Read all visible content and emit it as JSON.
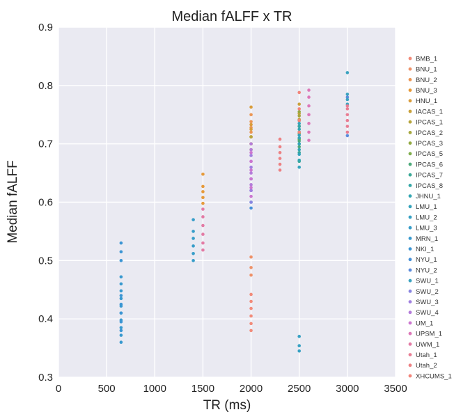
{
  "chart_data": {
    "type": "scatter",
    "title": "Median fALFF x TR",
    "xlabel": "TR (ms)",
    "ylabel": "Median fALFF",
    "xlim": [
      0,
      3500
    ],
    "ylim": [
      0.3,
      0.9
    ],
    "xticks": [
      0,
      500,
      1000,
      1500,
      2000,
      2500,
      3000,
      3500
    ],
    "yticks": [
      0.3,
      0.4,
      0.5,
      0.6,
      0.7,
      0.8,
      0.9
    ],
    "grid": true,
    "legend_position": "right",
    "series": [
      {
        "name": "BMB_1",
        "color": "#f28b7a",
        "x": 2000,
        "y": [
          0.38,
          0.392,
          0.405,
          0.418,
          0.43,
          0.442
        ]
      },
      {
        "name": "BNU_1",
        "color": "#ee9168",
        "x": 2000,
        "y": [
          0.475,
          0.488,
          0.506
        ]
      },
      {
        "name": "BNU_2",
        "color": "#eb9553",
        "x": 2000,
        "y": [
          0.712,
          0.72,
          0.728,
          0.738,
          0.75
        ]
      },
      {
        "name": "BNU_3",
        "color": "#e69a3a",
        "x": 1500,
        "y": [
          0.598,
          0.608,
          0.618,
          0.627,
          0.648
        ]
      },
      {
        "name": "HNU_1",
        "color": "#d99d3c",
        "x": 2000,
        "y": [
          0.7,
          0.712,
          0.725,
          0.733,
          0.763
        ]
      },
      {
        "name": "IACAS_1",
        "color": "#c9a23c",
        "x": 2500,
        "y": [
          0.742,
          0.752,
          0.768
        ]
      },
      {
        "name": "IPCAS_1",
        "color": "#b6a53d",
        "x": 2000,
        "y": [
          0.69,
          0.7,
          0.712
        ]
      },
      {
        "name": "IPCAS_2",
        "color": "#a6a83f",
        "x": 2500,
        "y": [
          0.718,
          0.73,
          0.748
        ]
      },
      {
        "name": "IPCAS_3",
        "color": "#93aa43",
        "x": 2500,
        "y": [
          0.74,
          0.755
        ]
      },
      {
        "name": "IPCAS_5",
        "color": "#7fad4b",
        "x": 2500,
        "y": [
          0.708,
          0.72,
          0.73
        ]
      },
      {
        "name": "IPCAS_6",
        "color": "#4daa7a",
        "x": 2500,
        "y": [
          0.695,
          0.705
        ]
      },
      {
        "name": "IPCAS_7",
        "color": "#3aa896",
        "x": 2500,
        "y": [
          0.67,
          0.685,
          0.7
        ]
      },
      {
        "name": "IPCAS_8",
        "color": "#34a7a6",
        "x": 2500,
        "y": [
          0.72,
          0.73
        ]
      },
      {
        "name": "JHNU_1",
        "color": "#33a6b2",
        "x": 2500,
        "y": [
          0.672,
          0.69,
          0.71,
          0.725,
          0.74
        ]
      },
      {
        "name": "LMU_1",
        "color": "#34a3bb",
        "x": 2500,
        "y": [
          0.66,
          0.682,
          0.7,
          0.715,
          0.735
        ]
      },
      {
        "name": "LMU_2",
        "color": "#35a0c3",
        "x": 2500,
        "y": [
          0.345,
          0.354,
          0.37
        ]
      },
      {
        "name": "LMU_3",
        "color": "#379dc9",
        "x": 1400,
        "y": [
          0.5,
          0.512,
          0.525,
          0.538,
          0.55,
          0.57
        ]
      },
      {
        "name": "MRN_1",
        "color": "#3899cf",
        "x": 650,
        "y": [
          0.36,
          0.372,
          0.385,
          0.398,
          0.41,
          0.422,
          0.435,
          0.448,
          0.46,
          0.472
        ]
      },
      {
        "name": "NKI_1",
        "color": "#3b95d4",
        "x": 650,
        "y": [
          0.38,
          0.395,
          0.41,
          0.425,
          0.44,
          0.5,
          0.515,
          0.53
        ]
      },
      {
        "name": "NYU_1",
        "color": "#4690d8",
        "x": 2000,
        "y": [
          0.59,
          0.6
        ]
      },
      {
        "name": "NYU_2",
        "color": "#5b8bdc",
        "x": 3000,
        "y": [
          0.714,
          0.78
        ]
      },
      {
        "name": "SWU_1",
        "color": "#3ba3c0",
        "x": 3000,
        "y": [
          0.768,
          0.776,
          0.785,
          0.822
        ]
      },
      {
        "name": "SWU_2",
        "color": "#8a85e0",
        "x": 2000,
        "y": [
          0.6,
          0.62,
          0.64
        ]
      },
      {
        "name": "SWU_3",
        "color": "#a07fdf",
        "x": 2000,
        "y": [
          0.62,
          0.64,
          0.66,
          0.68
        ]
      },
      {
        "name": "SWU_4",
        "color": "#b47cda",
        "x": 2000,
        "y": [
          0.63,
          0.65,
          0.67,
          0.69,
          0.7
        ]
      },
      {
        "name": "UM_1",
        "color": "#cc77d0",
        "x": 2000,
        "y": [
          0.61,
          0.625,
          0.64,
          0.655,
          0.67,
          0.685
        ]
      },
      {
        "name": "UPSM_1",
        "color": "#dc77b8",
        "x": 2600,
        "y": [
          0.706,
          0.72,
          0.735,
          0.75,
          0.765,
          0.78,
          0.792
        ]
      },
      {
        "name": "UWM_1",
        "color": "#e37ba5",
        "x": 1500,
        "y": [
          0.518,
          0.53,
          0.545,
          0.56,
          0.575,
          0.588
        ]
      },
      {
        "name": "Utah_1",
        "color": "#e97d93",
        "x": 3000,
        "y": [
          0.72,
          0.73,
          0.74,
          0.75,
          0.76,
          0.765
        ]
      },
      {
        "name": "Utah_2",
        "color": "#ed8183",
        "x": 2300,
        "y": [
          0.655,
          0.665,
          0.675,
          0.685,
          0.695,
          0.708
        ]
      },
      {
        "name": "XHCUMS_1",
        "color": "#f2857a",
        "x": 2500,
        "y": [
          0.72,
          0.74,
          0.76,
          0.788
        ]
      }
    ]
  }
}
